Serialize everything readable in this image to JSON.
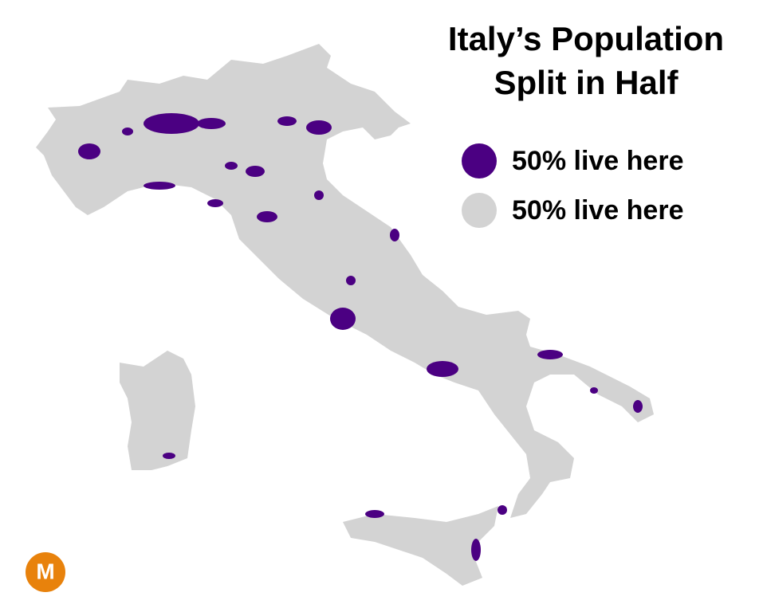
{
  "title": [
    "Italy’s Population",
    "Split in Half"
  ],
  "legend": [
    {
      "label": "50% live here",
      "color": "#4b0082"
    },
    {
      "label": "50% live here",
      "color": "#d3d3d3"
    }
  ],
  "logo": "M"
}
